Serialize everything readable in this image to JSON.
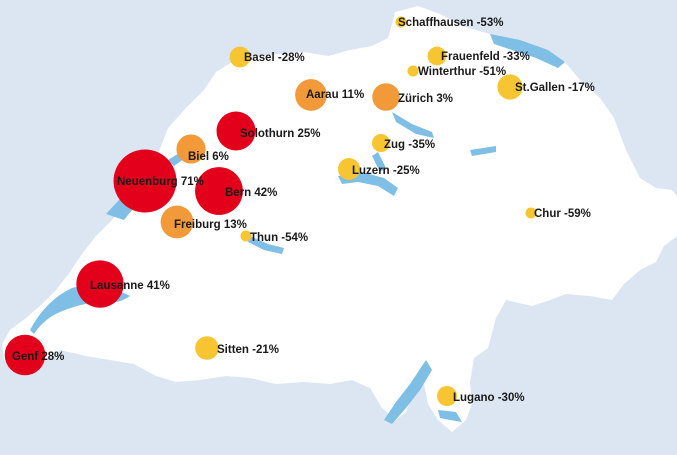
{
  "colors": {
    "background": "#dce6f2",
    "land": "#ffffff",
    "water": "#7fbfe6",
    "decline_strong": "#f6c531",
    "increase_moderate": "#f29a3a",
    "increase_strong": "#e3001b"
  },
  "cities": [
    {
      "id": "schaffhausen",
      "label": "Schaffhausen -53%",
      "value": -53
    },
    {
      "id": "basel",
      "label": "Basel -28%",
      "value": -28
    },
    {
      "id": "frauenfeld",
      "label": "Frauenfeld -33%",
      "value": -33
    },
    {
      "id": "winterthur",
      "label": "Winterthur -51%",
      "value": -51
    },
    {
      "id": "aarau",
      "label": "Aarau 11%",
      "value": 11
    },
    {
      "id": "zuerich",
      "label": "Zürich 3%",
      "value": 3
    },
    {
      "id": "stgallen",
      "label": "St.Gallen -17%",
      "value": -17
    },
    {
      "id": "solothurn",
      "label": "Solothurn 25%",
      "value": 25
    },
    {
      "id": "biel",
      "label": "Biel 6%",
      "value": 6
    },
    {
      "id": "zug",
      "label": "Zug -35%",
      "value": -35
    },
    {
      "id": "neuenburg",
      "label": "Neuenburg 71%",
      "value": 71
    },
    {
      "id": "bern",
      "label": "Bern 42%",
      "value": 42
    },
    {
      "id": "luzern",
      "label": "Luzern -25%",
      "value": -25
    },
    {
      "id": "chur",
      "label": "Chur -59%",
      "value": -59
    },
    {
      "id": "freiburg",
      "label": "Freiburg 13%",
      "value": 13
    },
    {
      "id": "thun",
      "label": "Thun -54%",
      "value": -54
    },
    {
      "id": "lausanne",
      "label": "Lausanne 41%",
      "value": 41
    },
    {
      "id": "genf",
      "label": "Genf 28%",
      "value": 28
    },
    {
      "id": "sitten",
      "label": "Sitten -21%",
      "value": -21
    },
    {
      "id": "lugano",
      "label": "Lugano -30%",
      "value": -30
    }
  ]
}
